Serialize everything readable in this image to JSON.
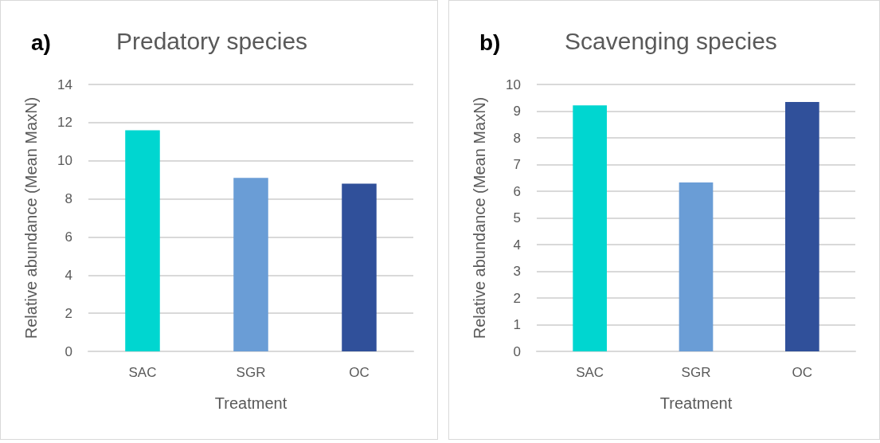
{
  "chart_data": [
    {
      "type": "bar",
      "title": "Predatory species",
      "annotations": [
        "a)"
      ],
      "xlabel": "Treatment",
      "ylabel": "Relative abundance (Mean MaxN)",
      "categories": [
        "SAC",
        "SGR",
        "OC"
      ],
      "values": [
        11.6,
        9.1,
        8.8
      ],
      "colors": [
        "#00d6d0",
        "#6a9dd6",
        "#30509a"
      ],
      "ylim": [
        0,
        14
      ],
      "yticks": [
        0,
        2,
        4,
        6,
        8,
        10,
        12,
        14
      ],
      "grid": "y"
    },
    {
      "type": "bar",
      "title": "Scavenging species",
      "annotations": [
        "b)"
      ],
      "xlabel": "Treatment",
      "ylabel": "Relative abundance (Mean MaxN)",
      "categories": [
        "SAC",
        "SGR",
        "OC"
      ],
      "values": [
        9.22,
        6.33,
        9.34
      ],
      "colors": [
        "#00d6d0",
        "#6a9dd6",
        "#30509a"
      ],
      "ylim": [
        0,
        10
      ],
      "yticks": [
        0,
        1,
        2,
        3,
        4,
        5,
        6,
        7,
        8,
        9,
        10
      ],
      "grid": "y"
    }
  ]
}
